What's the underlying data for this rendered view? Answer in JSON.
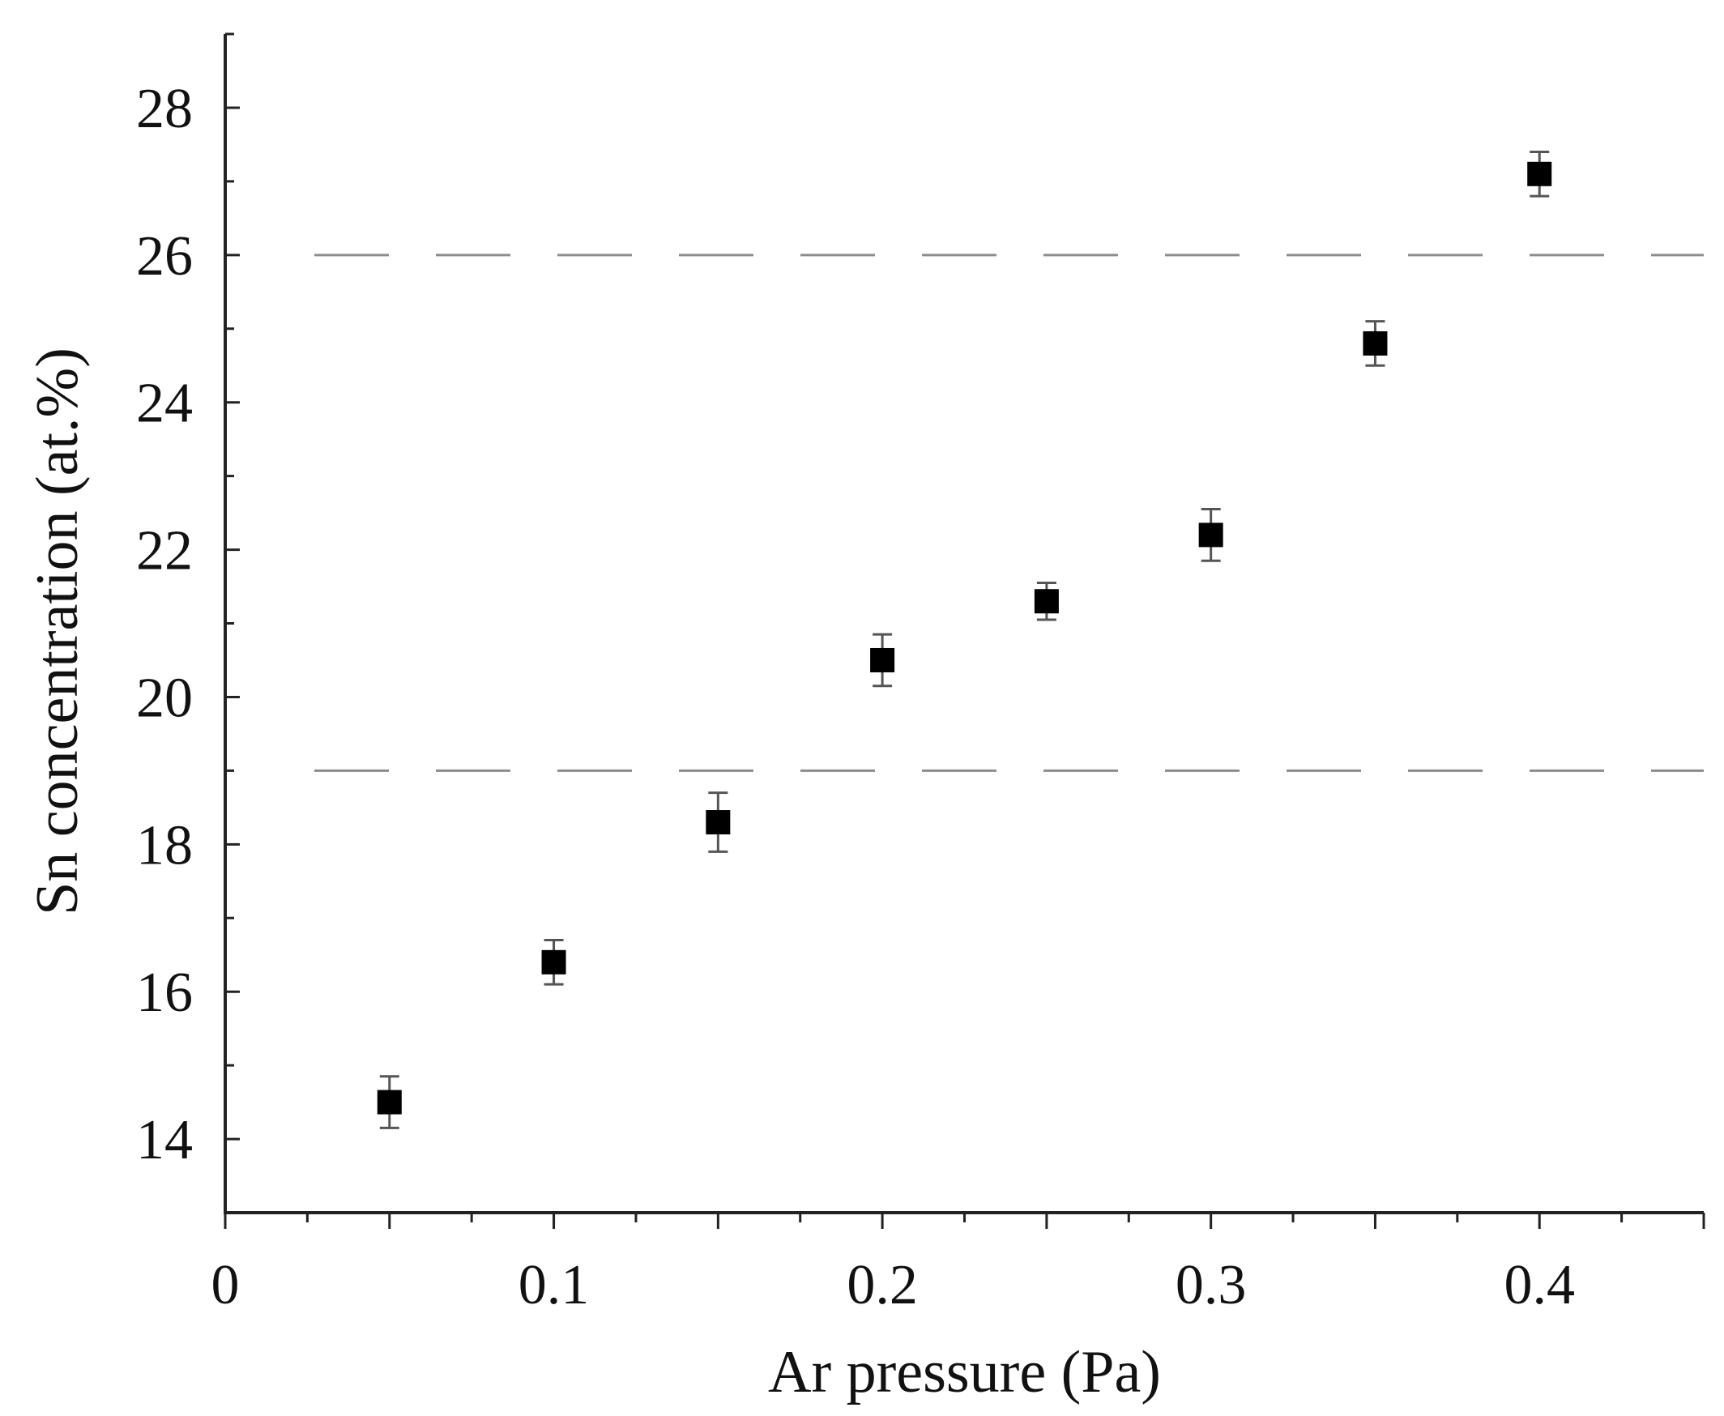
{
  "chart_data": {
    "type": "scatter",
    "title": "",
    "xlabel": "Ar pressure (Pa)",
    "ylabel": "Sn concentration (at.%)",
    "xlim": [
      0,
      0.45
    ],
    "ylim": [
      13,
      29
    ],
    "x_ticks": [
      0,
      0.1,
      0.2,
      0.3,
      0.4
    ],
    "x_tick_labels": [
      "0",
      "0.1",
      "0.2",
      "0.3",
      "0.4"
    ],
    "x_minor_step": 0.025,
    "y_ticks": [
      14,
      16,
      18,
      20,
      22,
      24,
      26,
      28
    ],
    "y_tick_labels": [
      "14",
      "16",
      "18",
      "20",
      "22",
      "24",
      "26",
      "28"
    ],
    "y_minor_step": 1,
    "grid": false,
    "series": [
      {
        "name": "Sn concentration",
        "marker": "square",
        "color": "#000000",
        "x": [
          0.05,
          0.1,
          0.15,
          0.2,
          0.25,
          0.3,
          0.35,
          0.4
        ],
        "y": [
          14.5,
          16.4,
          18.3,
          20.5,
          21.3,
          22.2,
          24.8,
          27.1
        ],
        "yerr": [
          0.35,
          0.3,
          0.4,
          0.35,
          0.25,
          0.35,
          0.3,
          0.3
        ]
      }
    ],
    "reference_lines": [
      {
        "orientation": "horizontal",
        "value": 19,
        "style": "dashed",
        "color": "#8c8c8c"
      },
      {
        "orientation": "horizontal",
        "value": 26,
        "style": "dashed",
        "color": "#8c8c8c"
      }
    ]
  }
}
